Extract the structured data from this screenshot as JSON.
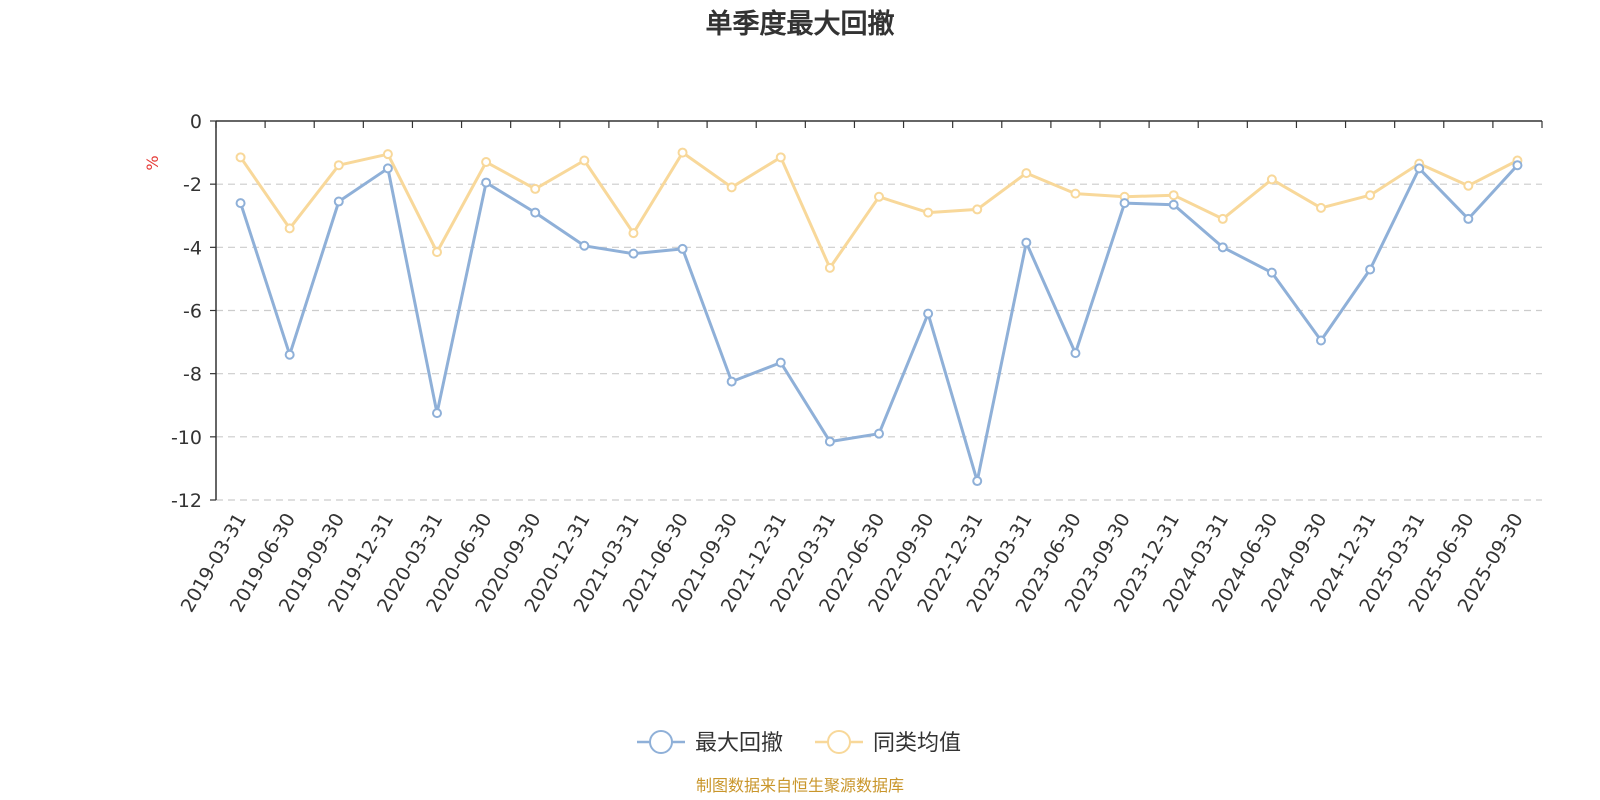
{
  "chart_data": {
    "type": "line",
    "title": "单季度最大回撤",
    "ylabel": "%",
    "xlabel": "",
    "ylim": [
      -12,
      0
    ],
    "yticks": [
      0,
      -2,
      -4,
      -6,
      -8,
      -10,
      -12
    ],
    "grid": true,
    "legend_position": "bottom-center",
    "categories": [
      "2019-03-31",
      "2019-06-30",
      "2019-09-30",
      "2019-12-31",
      "2020-03-31",
      "2020-06-30",
      "2020-09-30",
      "2020-12-31",
      "2021-03-31",
      "2021-06-30",
      "2021-09-30",
      "2021-12-31",
      "2022-03-31",
      "2022-06-30",
      "2022-09-30",
      "2022-12-31",
      "2023-03-31",
      "2023-06-30",
      "2023-09-30",
      "2023-12-31",
      "2024-03-31",
      "2024-06-30",
      "2024-09-30",
      "2024-12-31",
      "2025-03-31",
      "2025-06-30",
      "2025-09-30"
    ],
    "series": [
      {
        "name": "最大回撤",
        "color": "#8fb0d8",
        "values": [
          -2.6,
          -7.4,
          -2.55,
          -1.5,
          -9.25,
          -1.95,
          -2.9,
          -3.95,
          -4.2,
          -4.05,
          -8.25,
          -7.65,
          -10.15,
          -9.9,
          -6.1,
          -11.4,
          -3.85,
          -7.35,
          -2.6,
          -2.65,
          -4.0,
          -4.8,
          -6.95,
          -4.7,
          -1.5,
          -3.1,
          -1.4
        ]
      },
      {
        "name": "同类均值",
        "color": "#f8d89a",
        "values": [
          -1.15,
          -3.4,
          -1.4,
          -1.05,
          -4.15,
          -1.3,
          -2.15,
          -1.25,
          -3.55,
          -1.0,
          -2.1,
          -1.15,
          -4.65,
          -2.4,
          -2.9,
          -2.8,
          -1.65,
          -2.3,
          -2.4,
          -2.35,
          -3.1,
          -1.85,
          -2.75,
          -2.35,
          -1.35,
          -2.05,
          -1.25
        ]
      }
    ]
  },
  "footer": {
    "source": "制图数据来自恒生聚源数据库"
  }
}
